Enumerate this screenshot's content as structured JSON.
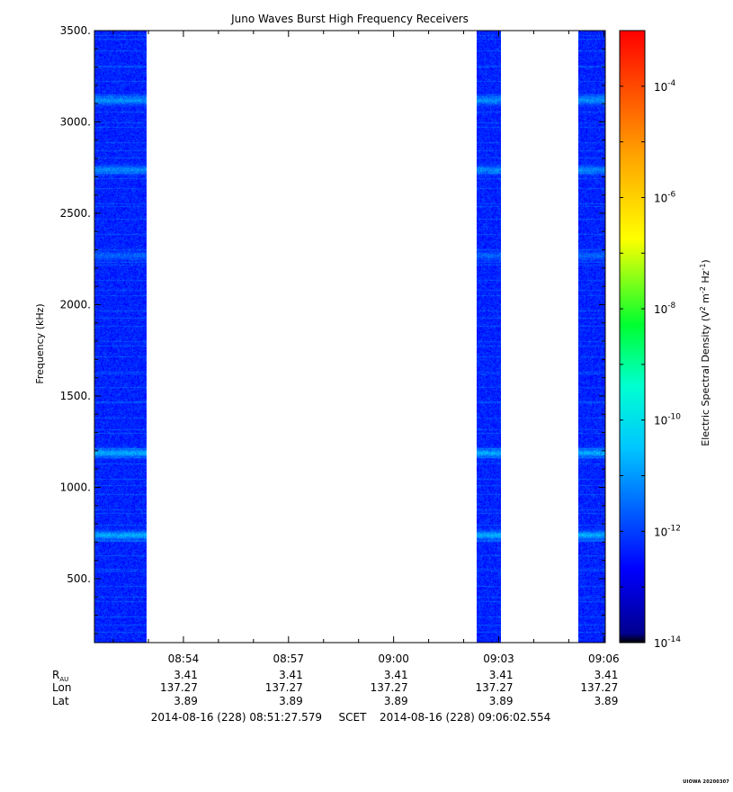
{
  "chart_data": {
    "type": "heatmap",
    "title": "Juno Waves Burst High Frequency Receivers",
    "ylabel": "Frequency (kHz)",
    "colorbar_label": "Electric Spectral Density (V² m⁻² Hz⁻¹)",
    "ylim": [
      150,
      3500
    ],
    "y_ticks": [
      {
        "value": 500,
        "label": "500."
      },
      {
        "value": 1000,
        "label": "1000."
      },
      {
        "value": 1500,
        "label": "1500."
      },
      {
        "value": 2000,
        "label": "2000."
      },
      {
        "value": 2500,
        "label": "2500."
      },
      {
        "value": 3000,
        "label": "3000."
      },
      {
        "value": 3500,
        "label": "3500."
      }
    ],
    "xlim_minutes": [
      531.459632,
      546.042567
    ],
    "x_ticks": [
      {
        "minute": 534,
        "label": "08:54"
      },
      {
        "minute": 537,
        "label": "08:57"
      },
      {
        "minute": 540,
        "label": "09:00"
      },
      {
        "minute": 543,
        "label": "09:03"
      },
      {
        "minute": 546,
        "label": "09:06"
      }
    ],
    "colorbar": {
      "log_range": [
        -14,
        -3
      ],
      "ticks": [
        {
          "exp": -14,
          "label": "10",
          "sup": "-14"
        },
        {
          "exp": -12,
          "label": "10",
          "sup": "-12"
        },
        {
          "exp": -10,
          "label": "10",
          "sup": "-10"
        },
        {
          "exp": -8,
          "label": "10",
          "sup": "-8"
        },
        {
          "exp": -6,
          "label": "10",
          "sup": "-6"
        },
        {
          "exp": -4,
          "label": "10",
          "sup": "-4"
        }
      ]
    },
    "data_segments_minutes": [
      [
        531.46,
        532.95
      ],
      [
        542.37,
        543.07
      ],
      [
        545.26,
        546.04
      ]
    ],
    "emission_bands": [
      {
        "freq_khz": 3120,
        "log_level": -11.1
      },
      {
        "freq_khz": 2740,
        "log_level": -11.2
      },
      {
        "freq_khz": 2270,
        "log_level": -11.6
      },
      {
        "freq_khz": 1190,
        "log_level": -10.8
      },
      {
        "freq_khz": 740,
        "log_level": -10.8
      }
    ],
    "background_log_level": -12.3
  },
  "ephemeris": {
    "rows": [
      {
        "label": "R",
        "sub": "AU",
        "values": [
          "3.41",
          "3.41",
          "3.41",
          "3.41",
          "3.41"
        ]
      },
      {
        "label": "Lon",
        "sub": "",
        "values": [
          "137.27",
          "137.27",
          "137.27",
          "137.27",
          "137.27"
        ]
      },
      {
        "label": "Lat",
        "sub": "",
        "values": [
          "3.89",
          "3.89",
          "3.89",
          "3.89",
          "3.89"
        ]
      }
    ],
    "start_time": "2014-08-16 (228) 08:51:27.579",
    "scet_label": "SCET",
    "end_time": "2014-08-16 (228) 09:06:02.554"
  },
  "footer": "UIOWA 20200307"
}
